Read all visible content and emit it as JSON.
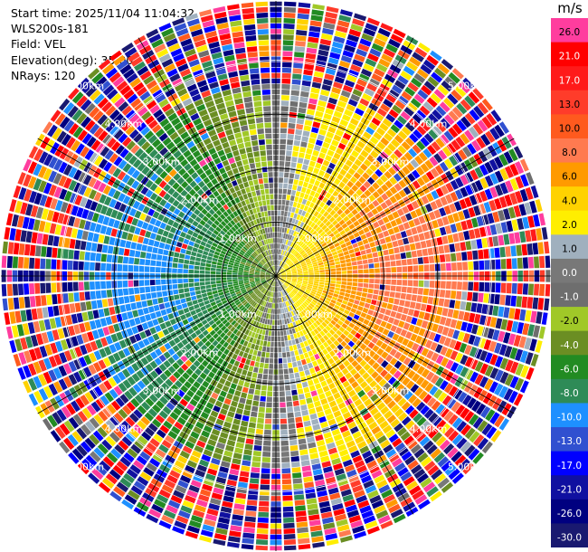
{
  "header": {
    "start_time": "Start time: 2025/11/04 11:04:32",
    "instrument": "WLS200s-181",
    "field": "Field: VEL",
    "elevation": "Elevation(deg): 35.00",
    "nrays": "NRays: 120"
  },
  "chart_data": {
    "type": "heatmap",
    "projection": "polar-ppi",
    "field": "VEL",
    "units": "m/s",
    "n_rays": 120,
    "range_rings_km": [
      1.0,
      2.0,
      3.0,
      4.0,
      5.0
    ],
    "max_range_km": 5.1,
    "ring_labels": {
      "1": "1.00km",
      "2": "2.00km",
      "3": "3.00km",
      "4": "4.00km",
      "5": "5.00km"
    },
    "velocity_pattern": "radial velocity dipole: approaching (negative, blue/green) to the west, receding (positive, orange/red) to the east, near-zero (grey/yellow) along north-south axis, noisy folded values beyond ~3.5 km",
    "colorbar": {
      "unit": "m/s",
      "ticks": [
        "26.0",
        "21.0",
        "17.0",
        "13.0",
        "10.0",
        "8.0",
        "6.0",
        "4.0",
        "2.0",
        "1.0",
        "0.0",
        "-1.0",
        "-2.0",
        "-4.0",
        "-6.0",
        "-8.0",
        "-10.0",
        "-13.0",
        "-17.0",
        "-21.0",
        "-26.0",
        "-30.0"
      ],
      "colors": [
        "#ff3d9e",
        "#ff0000",
        "#ff1a1a",
        "#ff3c2a",
        "#ff5a1e",
        "#ff7a50",
        "#ff9a00",
        "#ffd200",
        "#ffee00",
        "#a0b0be",
        "#787878",
        "#6e6e6e",
        "#a0c828",
        "#6b8e23",
        "#228b22",
        "#2e8b57",
        "#1e90ff",
        "#3050d0",
        "#0000ff",
        "#1010a0",
        "#000080",
        "#191970"
      ]
    }
  }
}
